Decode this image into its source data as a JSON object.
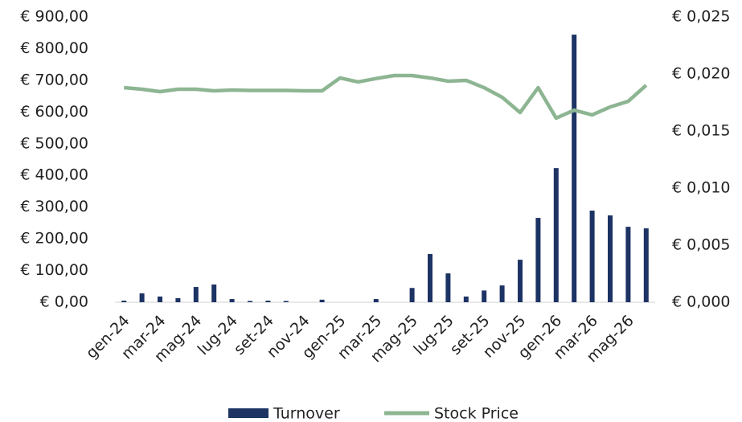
{
  "chart_data": {
    "type": "bar-line",
    "categories": [
      "gen-24",
      null,
      "mar-24",
      null,
      "mag-24",
      null,
      "lug-24",
      null,
      "set-24",
      null,
      "nov-24",
      null,
      "gen-25",
      null,
      "mar-25",
      null,
      "mag-25",
      null,
      "lug-25",
      null,
      "set-25",
      null,
      "nov-25",
      null,
      "gen-26",
      null,
      "mar-26",
      null,
      "mag-26",
      null
    ],
    "series": [
      {
        "name": "Turnover",
        "type": "bar",
        "color": "#1c3364",
        "values": [
          5,
          28,
          18,
          13,
          48,
          56,
          10,
          4,
          5,
          4,
          0,
          8,
          0,
          0,
          10,
          0,
          45,
          152,
          91,
          18,
          37,
          53,
          134,
          266,
          423,
          844,
          289,
          274,
          238,
          233
        ]
      },
      {
        "name": "Stock Price",
        "type": "line",
        "axis": "y2",
        "color": "#8db592",
        "values": [
          0.0188,
          0.01866,
          0.01845,
          0.01866,
          0.01866,
          0.01852,
          0.01859,
          0.01856,
          0.01856,
          0.01856,
          0.01852,
          0.01852,
          0.01965,
          0.0193,
          0.0196,
          0.01986,
          0.01986,
          0.01965,
          0.01937,
          0.01944,
          0.0188,
          0.01796,
          0.01662,
          0.0188,
          0.01613,
          0.01683,
          0.01641,
          0.01711,
          0.0176,
          0.01901
        ]
      }
    ],
    "ylim": [
      0,
      900
    ],
    "yticks": [
      {
        "value": 0,
        "label": "€ 0,00"
      },
      {
        "value": 100,
        "label": "€ 100,00"
      },
      {
        "value": 200,
        "label": "€ 200,00"
      },
      {
        "value": 300,
        "label": "€ 300,00"
      },
      {
        "value": 400,
        "label": "€ 400,00"
      },
      {
        "value": 500,
        "label": "€ 500,00"
      },
      {
        "value": 600,
        "label": "€ 600,00"
      },
      {
        "value": 700,
        "label": "€ 700,00"
      },
      {
        "value": 800,
        "label": "€ 800,00"
      },
      {
        "value": 900,
        "label": "€ 900,00"
      }
    ],
    "y2lim": [
      0,
      0.025
    ],
    "y2ticks": [
      {
        "value": 0,
        "label": "€ 0,000"
      },
      {
        "value": 0.005,
        "label": "€ 0,005"
      },
      {
        "value": 0.01,
        "label": "€ 0,010"
      },
      {
        "value": 0.015,
        "label": "€ 0,015"
      },
      {
        "value": 0.02,
        "label": "€ 0,020"
      },
      {
        "value": 0.025,
        "label": "€ 0,025"
      }
    ],
    "legend": "bottom"
  }
}
